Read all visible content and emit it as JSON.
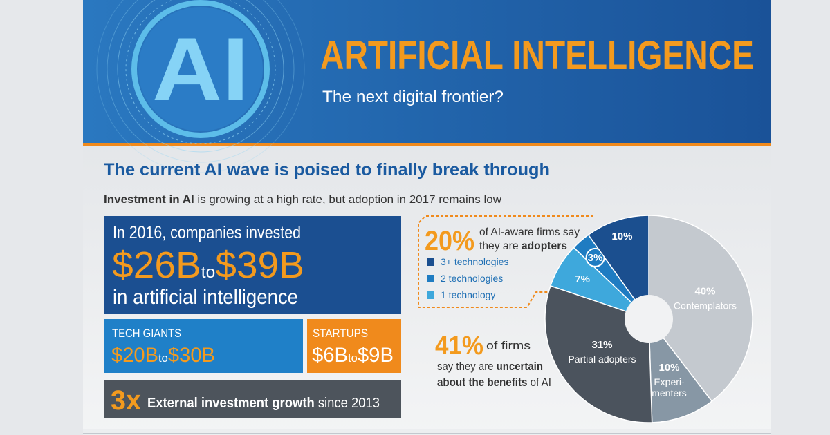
{
  "header": {
    "logo": "AI",
    "title": "ARTIFICIAL INTELLIGENCE",
    "subtitle": "The next digital frontier?"
  },
  "section_title": "The current AI wave is poised to finally break through",
  "intro": {
    "bold": "Investment in AI",
    "text": " is growing at a high rate, but adoption in 2017 remains low"
  },
  "investment": {
    "lead": "In 2016, companies invested",
    "low": "$26B",
    "connector": "to",
    "high": "$39B",
    "tail": "in artificial intelligence"
  },
  "tech_giants": {
    "label": "TECH GIANTS",
    "low": "$20B",
    "connector": "to",
    "high": "$30B"
  },
  "startups": {
    "label": "STARTUPS",
    "low": "$6B",
    "connector": "to",
    "high": "$9B"
  },
  "growth": {
    "multiplier": "3x",
    "bold": "External investment growth",
    "text": " since 2013"
  },
  "adopters_callout": {
    "share": "20%",
    "line1": "of AI-aware firms say",
    "line2": "they are ",
    "bold": "adopters"
  },
  "uncertain_callout": {
    "share": "41%",
    "line1": "of firms",
    "line2": "say they are ",
    "bold2": "uncertain",
    "bold3": "about the benefits",
    "line3": " of AI"
  },
  "chart_data": {
    "type": "pie",
    "donut": true,
    "categories": [
      "Contemplators",
      "Experi-\nmenters",
      "Partial adopters",
      "1 technology",
      "2 technologies",
      "3+ technologies"
    ],
    "values": [
      40,
      10,
      31,
      7,
      3,
      10
    ],
    "value_labels": [
      "40%",
      "10%",
      "31%",
      "7%",
      "3%",
      "10%"
    ],
    "colors": [
      "#c4c9cf",
      "#8797a5",
      "#4b535d",
      "#3ea8dc",
      "#1f7cc2",
      "#1b4f8f"
    ]
  }
}
